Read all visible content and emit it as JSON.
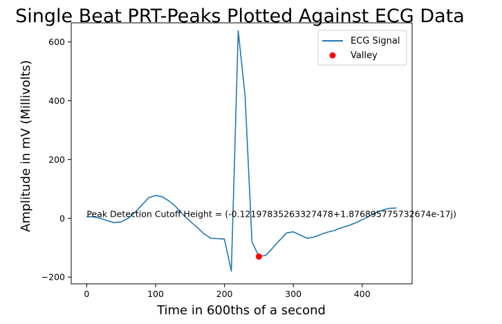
{
  "chart_data": {
    "type": "line",
    "title": "Single Beat PRT-Peaks Plotted Against ECG Data",
    "xlabel": "Time in 600ths of a second",
    "ylabel": "Amplitude in mV (Millivolts)",
    "xlim": [
      -22.5,
      472.5
    ],
    "ylim": [
      -223,
      665
    ],
    "xticks": [
      0,
      100,
      200,
      300,
      400
    ],
    "yticks": [
      -200,
      0,
      200,
      400,
      600
    ],
    "grid": false,
    "legend_position": "top-right",
    "annotation": {
      "text": "Peak Detection Cutoff Height = (-0.12197835263327478+1.876895775732674e-17j)",
      "x": 0,
      "y": 0
    },
    "series": [
      {
        "name": "ECG Signal",
        "kind": "line",
        "color": "#1f77b4",
        "x": [
          0,
          10,
          20,
          30,
          40,
          50,
          60,
          70,
          80,
          90,
          100,
          110,
          120,
          130,
          140,
          150,
          160,
          170,
          180,
          190,
          200,
          210,
          220,
          230,
          240,
          250,
          260,
          270,
          280,
          290,
          300,
          310,
          320,
          330,
          340,
          350,
          360,
          370,
          380,
          390,
          400,
          410,
          420,
          430,
          440,
          450
        ],
        "y": [
          5,
          5,
          0,
          -8,
          -15,
          -12,
          0,
          20,
          45,
          70,
          78,
          73,
          58,
          38,
          12,
          -10,
          -30,
          -52,
          -68,
          -69,
          -71,
          -180,
          638,
          415,
          -80,
          -130,
          -126,
          -101,
          -75,
          -50,
          -46,
          -57,
          -68,
          -64,
          -55,
          -47,
          -41,
          -32,
          -25,
          -16,
          -5,
          7,
          20,
          28,
          34,
          35
        ]
      },
      {
        "name": "Valley",
        "kind": "scatter",
        "color": "#ff0000",
        "x": [
          250
        ],
        "y": [
          -130
        ]
      }
    ]
  }
}
